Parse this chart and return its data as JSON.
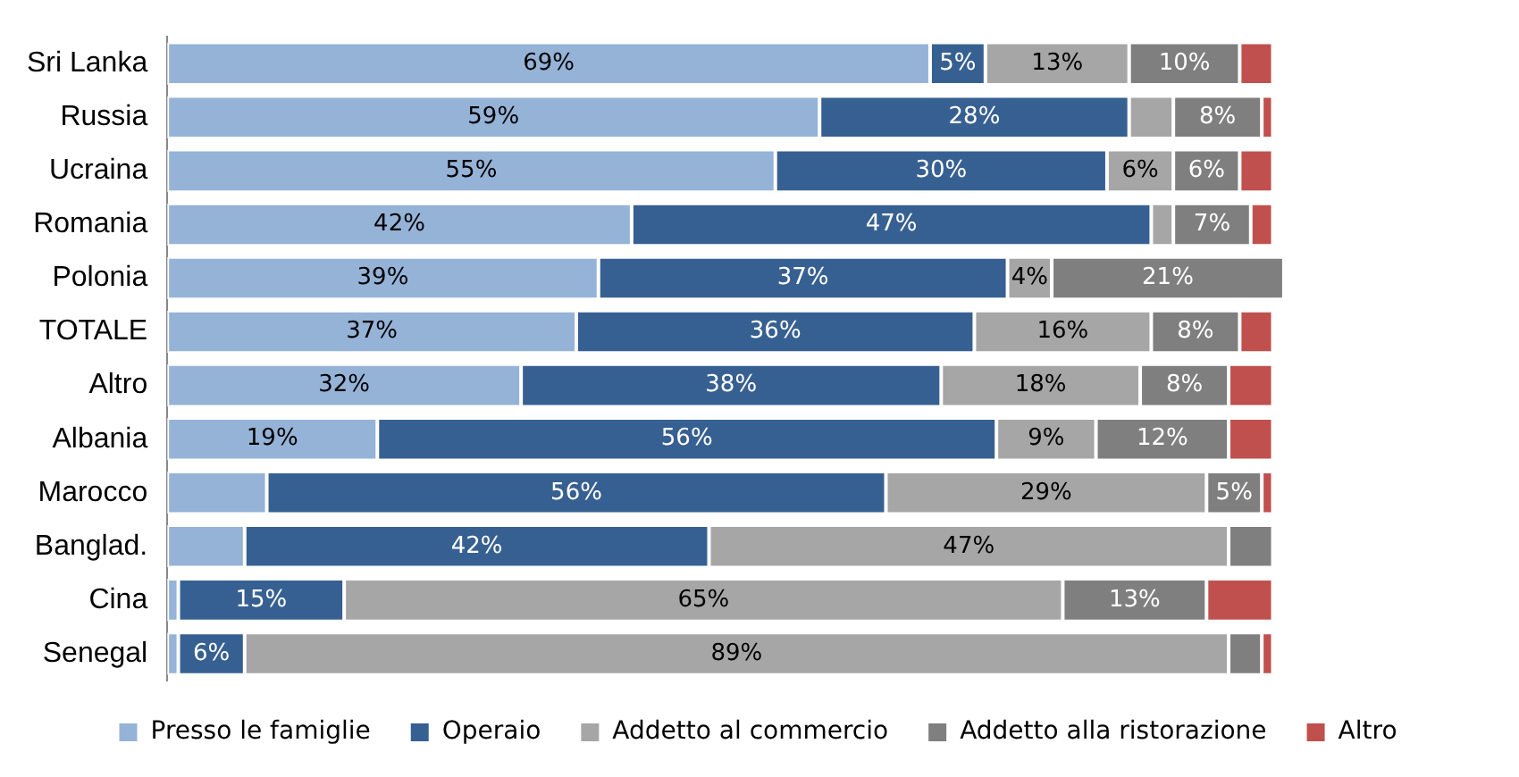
{
  "chart_data": {
    "type": "bar",
    "orientation": "horizontal",
    "stacked": true,
    "legend": "bottom",
    "categories": [
      "Sri Lanka",
      "Russia",
      "Ucraina",
      "Romania",
      "Polonia",
      "TOTALE",
      "Altro",
      "Albania",
      "Marocco",
      "Banglad.",
      "Cina",
      "Senegal"
    ],
    "series": [
      {
        "name": "Presso le famiglie",
        "color": "#95b3d7",
        "values": [
          69,
          59,
          55,
          42,
          39,
          37,
          32,
          19,
          9,
          7,
          1,
          1
        ],
        "value_labels": [
          "69%",
          "59%",
          "55%",
          "42%",
          "39%",
          "37%",
          "32%",
          "19%",
          null,
          null,
          null,
          null
        ]
      },
      {
        "name": "Operaio",
        "color": "#376092",
        "values": [
          5,
          28,
          30,
          47,
          37,
          36,
          38,
          56,
          56,
          42,
          15,
          6
        ],
        "value_labels": [
          "5%",
          "28%",
          "30%",
          "47%",
          "37%",
          "36%",
          "38%",
          "56%",
          "56%",
          "42%",
          "15%",
          "6%"
        ]
      },
      {
        "name": "Addetto al commercio",
        "color": "#a6a6a6",
        "values": [
          13,
          4,
          6,
          2,
          4,
          16,
          18,
          9,
          29,
          47,
          65,
          89
        ],
        "value_labels": [
          "13%",
          null,
          "6%",
          null,
          "4%",
          "16%",
          "18%",
          "9%",
          "29%",
          "47%",
          "65%",
          "89%"
        ]
      },
      {
        "name": "Addetto alla ristorazione",
        "color": "#7f7f7f",
        "values": [
          10,
          8,
          6,
          7,
          21,
          8,
          8,
          12,
          5,
          4,
          13,
          3
        ],
        "value_labels": [
          "10%",
          "8%",
          "6%",
          "7%",
          "21%",
          "8%",
          "8%",
          "12%",
          "5%",
          null,
          "13%",
          null
        ]
      },
      {
        "name": "Altro",
        "color": "#c0504d",
        "values": [
          3,
          1,
          3,
          2,
          0,
          3,
          4,
          4,
          1,
          0,
          6,
          1
        ],
        "value_labels": [
          null,
          null,
          null,
          null,
          null,
          null,
          null,
          null,
          null,
          null,
          null,
          null
        ]
      }
    ]
  }
}
